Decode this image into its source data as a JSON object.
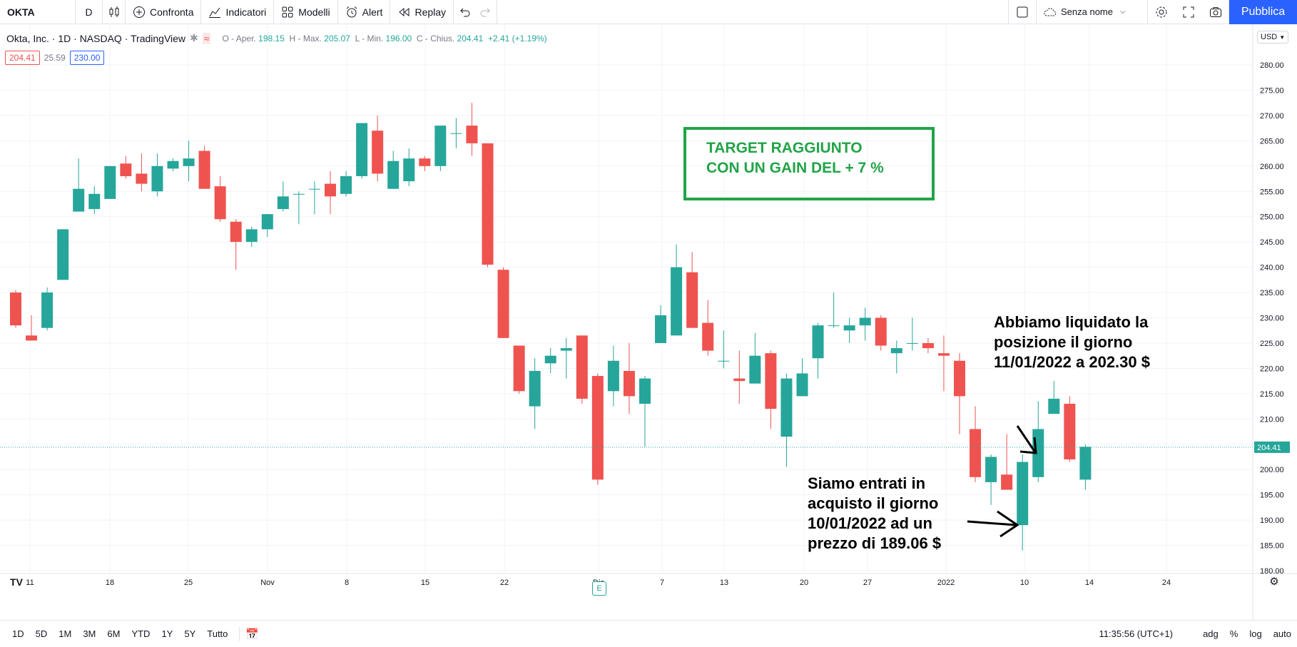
{
  "toolbar": {
    "symbol": "OKTA",
    "interval": "D",
    "compare_label": "Confronta",
    "indicators_label": "Indicatori",
    "templates_label": "Modelli",
    "alert_label": "Alert",
    "replay_label": "Replay",
    "layout_name": "Senza nome",
    "publish_label": "Pubblica"
  },
  "legend": {
    "title": "Okta, Inc. · 1D · NASDAQ · TradingView",
    "open_label": "O - Aper.",
    "open": "198.15",
    "high_label": "H - Max.",
    "high": "205.07",
    "low_label": "L - Min.",
    "low": "196.00",
    "close_label": "C - Chius.",
    "close": "204.41",
    "change": "+2.41 (+1.19%)"
  },
  "indicator_values": {
    "a": "204.41",
    "b": "25.59",
    "c": "230.00"
  },
  "price_axis": {
    "currency": "USD",
    "ticks": [
      "280.00",
      "275.00",
      "270.00",
      "265.00",
      "260.00",
      "255.00",
      "250.00",
      "245.00",
      "240.00",
      "235.00",
      "230.00",
      "225.00",
      "220.00",
      "215.00",
      "210.00",
      "205.00",
      "200.00",
      "195.00",
      "190.00",
      "185.00",
      "180.00"
    ],
    "last_price": "204.41"
  },
  "time_axis": {
    "labels": [
      "11",
      "18",
      "25",
      "Nov",
      "8",
      "15",
      "22",
      "Dic",
      "7",
      "13",
      "20",
      "27",
      "2022",
      "10",
      "14",
      "24"
    ]
  },
  "annotations": {
    "target_line1": "TARGET RAGGIUNTO",
    "target_line2": "CON UN GAIN DEL + 7 %",
    "exit_text": "Abbiamo liquidato la posizione il giorno 11/01/2022 a 202.30 $",
    "entry_text": "Siamo entrati in acquisto il giorno 10/01/2022 ad un prezzo di 189.06 $"
  },
  "earnings_badge": "E",
  "tv_logo": "TV",
  "bottom": {
    "ranges": [
      "1D",
      "5D",
      "1M",
      "3M",
      "6M",
      "YTD",
      "1Y",
      "5Y",
      "Tutto"
    ],
    "clock": "11:35:56 (UTC+1)",
    "adj": "adg",
    "percent": "%",
    "log": "log",
    "auto": "auto"
  },
  "colors": {
    "up": "#26a69a",
    "down": "#ef5350",
    "accent": "#2962ff",
    "target": "#21a447"
  },
  "chart_data": {
    "type": "candlestick",
    "ylim": [
      178,
      283
    ],
    "candles": [
      {
        "o": 235,
        "h": 235.5,
        "l": 228,
        "c": 228.5
      },
      {
        "o": 226.5,
        "h": 230.5,
        "l": 225.5,
        "c": 225.5
      },
      {
        "o": 228,
        "h": 236,
        "l": 227.5,
        "c": 235
      },
      {
        "o": 237.5,
        "h": 247.5,
        "l": 237.5,
        "c": 247.5
      },
      {
        "o": 251,
        "h": 261.5,
        "l": 251,
        "c": 255.5
      },
      {
        "o": 251.5,
        "h": 256,
        "l": 250.5,
        "c": 254.5
      },
      {
        "o": 253.5,
        "h": 260,
        "l": 253.5,
        "c": 260
      },
      {
        "o": 260.5,
        "h": 262,
        "l": 257.5,
        "c": 258
      },
      {
        "o": 258.5,
        "h": 262.5,
        "l": 255,
        "c": 256.5
      },
      {
        "o": 255,
        "h": 262.5,
        "l": 254,
        "c": 260
      },
      {
        "o": 259.5,
        "h": 261.5,
        "l": 259,
        "c": 261
      },
      {
        "o": 260,
        "h": 265,
        "l": 257,
        "c": 261.5
      },
      {
        "o": 263,
        "h": 264,
        "l": 255.5,
        "c": 255.5
      },
      {
        "o": 256,
        "h": 258,
        "l": 249,
        "c": 249.5
      },
      {
        "o": 249,
        "h": 249.5,
        "l": 239.5,
        "c": 245
      },
      {
        "o": 245,
        "h": 248,
        "l": 244,
        "c": 247.5
      },
      {
        "o": 247.5,
        "h": 250.5,
        "l": 246,
        "c": 250.5
      },
      {
        "o": 251.5,
        "h": 257,
        "l": 251,
        "c": 254
      },
      {
        "o": 254.5,
        "h": 255,
        "l": 248.5,
        "c": 254.5
      },
      {
        "o": 255.5,
        "h": 257,
        "l": 250.5,
        "c": 255.5
      },
      {
        "o": 256.5,
        "h": 259,
        "l": 250.5,
        "c": 254
      },
      {
        "o": 254.5,
        "h": 259,
        "l": 254,
        "c": 258
      },
      {
        "o": 258,
        "h": 268.5,
        "l": 257.5,
        "c": 268.5
      },
      {
        "o": 267,
        "h": 270,
        "l": 257,
        "c": 258.5
      },
      {
        "o": 255.5,
        "h": 263,
        "l": 255.5,
        "c": 261
      },
      {
        "o": 257,
        "h": 263.5,
        "l": 256,
        "c": 261.5
      },
      {
        "o": 261.5,
        "h": 262,
        "l": 259,
        "c": 260
      },
      {
        "o": 260,
        "h": 268,
        "l": 259,
        "c": 268
      },
      {
        "o": 266.5,
        "h": 269.5,
        "l": 263.5,
        "c": 266.5
      },
      {
        "o": 268,
        "h": 272.5,
        "l": 262,
        "c": 264.5
      },
      {
        "o": 264.5,
        "h": 264.5,
        "l": 240,
        "c": 240.5
      },
      {
        "o": 239.5,
        "h": 240,
        "l": 226,
        "c": 226
      },
      {
        "o": 224.5,
        "h": 224.5,
        "l": 215,
        "c": 215.5
      },
      {
        "o": 212.5,
        "h": 222,
        "l": 208,
        "c": 219.5
      },
      {
        "o": 221,
        "h": 224,
        "l": 219,
        "c": 222.5
      },
      {
        "o": 223.5,
        "h": 226,
        "l": 218,
        "c": 224
      },
      {
        "o": 226.5,
        "h": 226.5,
        "l": 213,
        "c": 214
      },
      {
        "o": 218.5,
        "h": 219,
        "l": 197,
        "c": 198
      },
      {
        "o": 215.5,
        "h": 224.5,
        "l": 212.5,
        "c": 221.5
      },
      {
        "o": 219.5,
        "h": 225,
        "l": 211,
        "c": 214.5
      },
      {
        "o": 213,
        "h": 218.5,
        "l": 204.5,
        "c": 218
      },
      {
        "o": 225,
        "h": 232.5,
        "l": 225,
        "c": 230.5
      },
      {
        "o": 226.5,
        "h": 244.5,
        "l": 227,
        "c": 240
      },
      {
        "o": 239,
        "h": 243,
        "l": 228,
        "c": 228
      },
      {
        "o": 229,
        "h": 233.5,
        "l": 222.5,
        "c": 223.5
      },
      {
        "o": 221.5,
        "h": 227.5,
        "l": 220,
        "c": 221.5
      },
      {
        "o": 218,
        "h": 223.5,
        "l": 213,
        "c": 217.5
      },
      {
        "o": 217,
        "h": 227,
        "l": 217,
        "c": 222.5
      },
      {
        "o": 223,
        "h": 223.5,
        "l": 208,
        "c": 212
      },
      {
        "o": 206.5,
        "h": 219,
        "l": 200.5,
        "c": 218
      },
      {
        "o": 214.5,
        "h": 222,
        "l": 214.5,
        "c": 219
      },
      {
        "o": 222,
        "h": 229,
        "l": 218,
        "c": 228.5
      },
      {
        "o": 228.5,
        "h": 235,
        "l": 228,
        "c": 228.5
      },
      {
        "o": 227.5,
        "h": 230,
        "l": 225,
        "c": 228.5
      },
      {
        "o": 228.5,
        "h": 232,
        "l": 225.5,
        "c": 230
      },
      {
        "o": 230,
        "h": 230.5,
        "l": 223.5,
        "c": 224.5
      },
      {
        "o": 223,
        "h": 225.5,
        "l": 219,
        "c": 224
      },
      {
        "o": 225,
        "h": 230,
        "l": 223.5,
        "c": 225
      },
      {
        "o": 225,
        "h": 226,
        "l": 223,
        "c": 224
      },
      {
        "o": 223,
        "h": 226.5,
        "l": 215.5,
        "c": 222.5
      },
      {
        "o": 221.5,
        "h": 223,
        "l": 207,
        "c": 214.5
      },
      {
        "o": 208,
        "h": 212.5,
        "l": 197.5,
        "c": 198.5
      },
      {
        "o": 197.5,
        "h": 203,
        "l": 193,
        "c": 202.5
      },
      {
        "o": 199,
        "h": 207,
        "l": 196,
        "c": 196
      },
      {
        "o": 189,
        "h": 203,
        "l": 184,
        "c": 201.5
      },
      {
        "o": 198.5,
        "h": 213.5,
        "l": 197.5,
        "c": 208
      },
      {
        "o": 211,
        "h": 217.5,
        "l": 211,
        "c": 214
      },
      {
        "o": 213,
        "h": 214.5,
        "l": 201.5,
        "c": 202
      },
      {
        "o": 198,
        "h": 205,
        "l": 196,
        "c": 204.5
      }
    ]
  }
}
